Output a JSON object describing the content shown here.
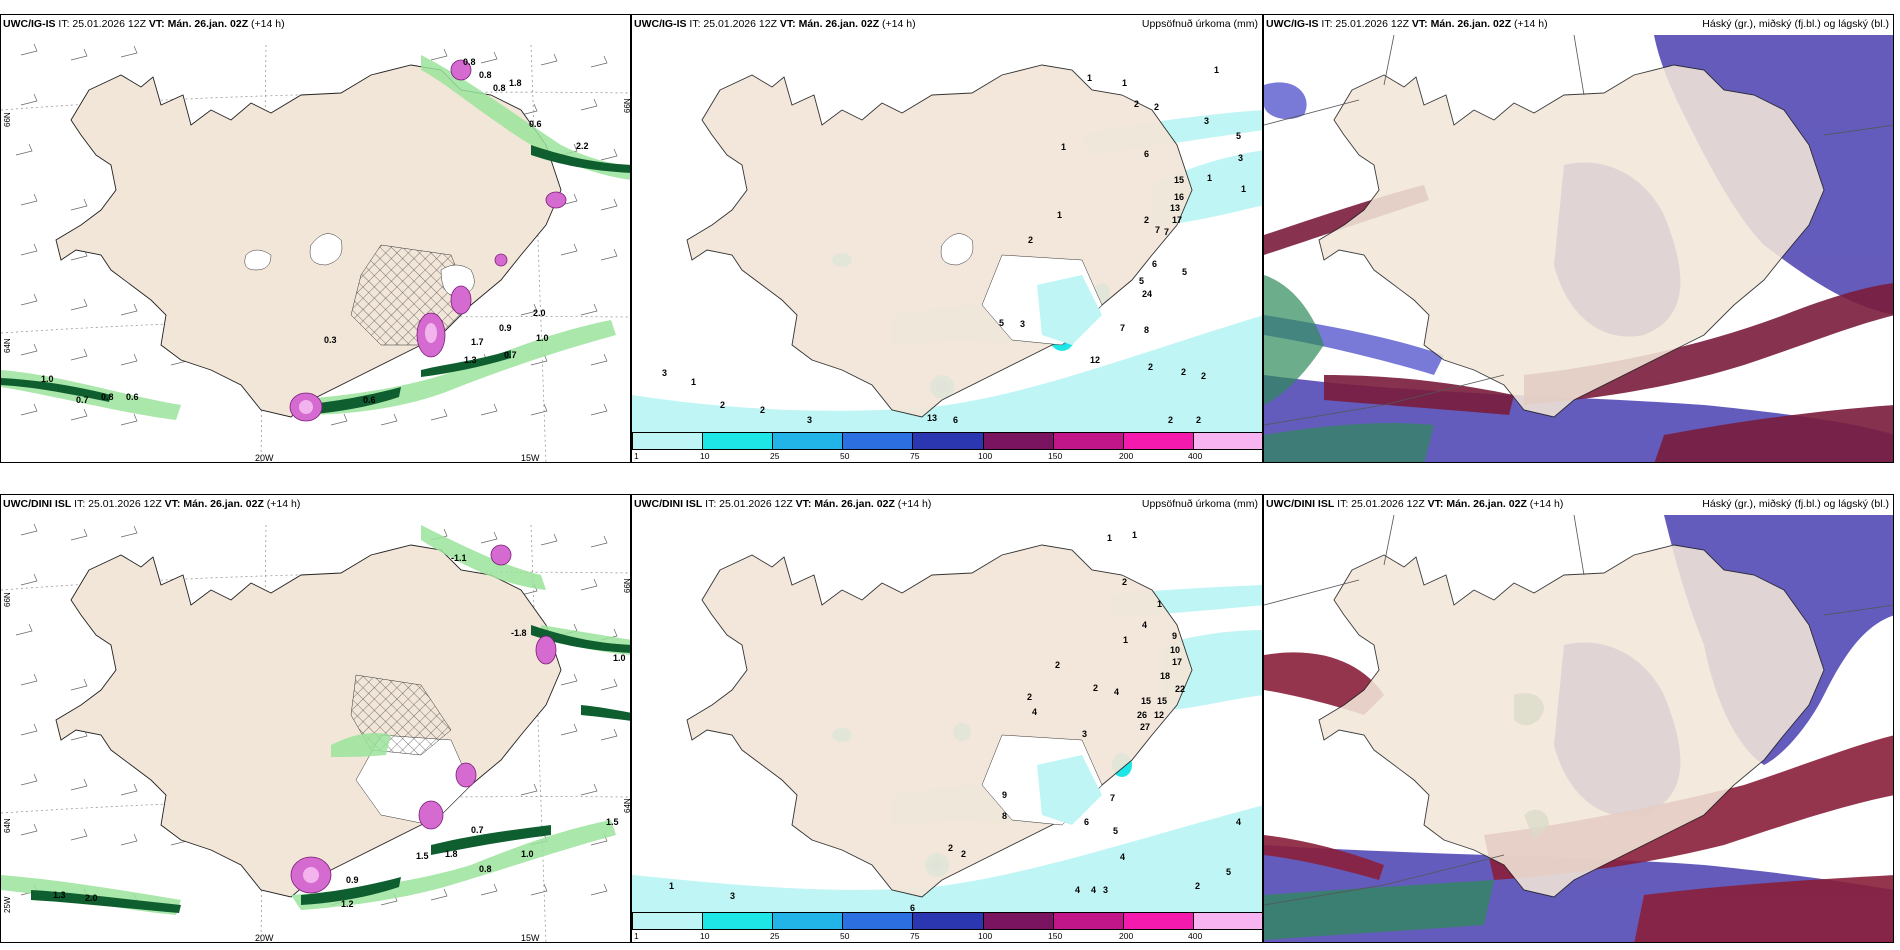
{
  "panels": {
    "p1": {
      "model": "UWC/IG-IS",
      "info": " IT: 25.01.2026 12Z ",
      "vt_label": "VT:",
      "vt": "Mán. 26.jan. 02Z",
      "lead": " (+14 h)",
      "right_title": ""
    },
    "p2": {
      "model": "UWC/IG-IS",
      "info": " IT: 25.01.2026 12Z ",
      "vt_label": "VT:",
      "vt": "Mán. 26.jan. 02Z",
      "lead": " (+14 h)",
      "right_title": "Uppsöfnuð úrkoma (mm)"
    },
    "p3": {
      "model": "UWC/IG-IS",
      "info": " IT: 25.01.2026 12Z ",
      "vt_label": "VT:",
      "vt": "Mán. 26.jan. 02Z",
      "lead": " (+14 h)",
      "right_title": "Háský (gr.), miðský (fj.bl.) og lágský (bl.)"
    },
    "p4": {
      "model": "UWC/DINI ISL",
      "info": " IT: 25.01.2026 12Z ",
      "vt_label": "VT:",
      "vt": "Mán. 26.jan. 02Z",
      "lead": " (+14 h)",
      "right_title": ""
    },
    "p5": {
      "model": "UWC/DINI ISL",
      "info": " IT: 25.01.2026 12Z ",
      "vt_label": "VT:",
      "vt": "Mán. 26.jan. 02Z",
      "lead": " (+14 h)",
      "right_title": "Uppsöfnuð úrkoma (mm)"
    },
    "p6": {
      "model": "UWC/DINI ISL",
      "info": " IT: 25.01.2026 12Z ",
      "vt_label": "VT:",
      "vt": "Mán. 26.jan. 02Z",
      "lead": " (+14 h)",
      "right_title": "Háský (gr.), miðský (fj.bl.) og lágský (bl.)"
    }
  },
  "axis_labels": {
    "lat66": "66N",
    "lat64": "64N",
    "lat_top_right": "66N",
    "lat_mid_right": "64N",
    "lon20": "20W",
    "lon15": "15W",
    "lon25": "25W"
  },
  "precip_colorbar": {
    "labels": [
      "1",
      "10",
      "25",
      "50",
      "75",
      "100",
      "150",
      "200",
      "400"
    ],
    "colors": [
      "#bff5f5",
      "#1ee6e6",
      "#22b4e6",
      "#2b6fe0",
      "#2b37b0",
      "#7a1460",
      "#c0168a",
      "#f51aae",
      "#f7b4f0"
    ]
  },
  "values": {
    "p1": [
      "0.8",
      "0.8",
      "0.8",
      "1.8",
      "0.6",
      "2.2",
      "1.0",
      "0.7",
      "0.8",
      "0.6",
      "0.6",
      "1.3",
      "2.0",
      "1.0",
      "0.7",
      "0.9",
      "1.7",
      "0.3"
    ],
    "p2": [
      "1",
      "1",
      "2",
      "2",
      "1",
      "3",
      "5",
      "3",
      "6",
      "1",
      "1",
      "15",
      "16",
      "17",
      "13",
      "2",
      "7",
      "7",
      "24",
      "5",
      "6",
      "2",
      "1",
      "3",
      "5",
      "12",
      "7",
      "8",
      "2",
      "2",
      "2",
      "1",
      "2",
      "2",
      "3",
      "3",
      "6",
      "13",
      "2",
      "2",
      "1",
      "5"
    ],
    "p4": [
      "-1.1",
      "-1.8",
      "1.0",
      "1.5",
      "0.7",
      "1.8",
      "0.8",
      "0.9",
      "1.2",
      "2.0",
      "1.3",
      "1.5",
      "1.0"
    ],
    "p5": [
      "1",
      "1",
      "2",
      "1",
      "4",
      "1",
      "10",
      "9",
      "17",
      "18",
      "22",
      "15",
      "15",
      "26",
      "27",
      "12",
      "4",
      "2",
      "2",
      "2",
      "4",
      "3",
      "9",
      "8",
      "7",
      "6",
      "5",
      "4",
      "4",
      "4",
      "3",
      "2",
      "4",
      "5",
      "1",
      "3",
      "6",
      "2",
      "2"
    ]
  }
}
